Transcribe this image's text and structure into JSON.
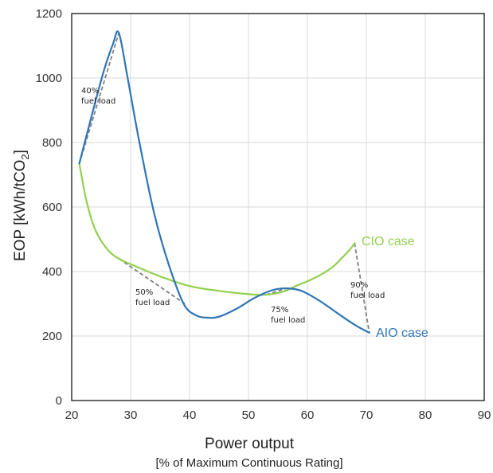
{
  "chart_data": {
    "type": "line",
    "xlabel": "Power output",
    "xlabel_sub": "[% of Maximum Continuous Rating]",
    "ylabel_main": "EOP [kWh/tCO",
    "ylabel_subscript": "2",
    "ylabel_close": "]",
    "xlim": [
      20,
      90
    ],
    "ylim": [
      0,
      1200
    ],
    "x_ticks": [
      "20",
      "30",
      "40",
      "50",
      "60",
      "70",
      "80",
      "90"
    ],
    "y_ticks": [
      "0",
      "200",
      "400",
      "600",
      "800",
      "1000",
      "1200"
    ],
    "grid": true,
    "series": [
      {
        "name": "CIO  case",
        "color": "#92d050",
        "points": [
          [
            21.3,
            735
          ],
          [
            22.5,
            620
          ],
          [
            24,
            530
          ],
          [
            26,
            470
          ],
          [
            28,
            440
          ],
          [
            31,
            415
          ],
          [
            35,
            385
          ],
          [
            40,
            355
          ],
          [
            45,
            340
          ],
          [
            50,
            330
          ],
          [
            53,
            328
          ],
          [
            56,
            338
          ],
          [
            58,
            355
          ],
          [
            61,
            378
          ],
          [
            64,
            410
          ],
          [
            66,
            445
          ],
          [
            67.3,
            470
          ],
          [
            68,
            488
          ]
        ]
      },
      {
        "name": "AIO  case",
        "color": "#2e75b6",
        "points": [
          [
            21.3,
            735
          ],
          [
            22.5,
            820
          ],
          [
            24,
            925
          ],
          [
            25.5,
            1025
          ],
          [
            27,
            1105
          ],
          [
            28,
            1140
          ],
          [
            29.5,
            1000
          ],
          [
            31.5,
            800
          ],
          [
            34,
            580
          ],
          [
            36.5,
            420
          ],
          [
            39,
            300
          ],
          [
            41,
            265
          ],
          [
            43,
            257
          ],
          [
            45,
            260
          ],
          [
            48,
            285
          ],
          [
            51,
            318
          ],
          [
            54,
            342
          ],
          [
            56.5,
            348
          ],
          [
            59,
            340
          ],
          [
            62,
            310
          ],
          [
            65,
            272
          ],
          [
            68,
            235
          ],
          [
            70.5,
            210
          ]
        ]
      }
    ],
    "dashed_lines": [
      {
        "label_line1": "40%",
        "label_line2": "fuel load",
        "from": [
          21.3,
          735
        ],
        "to": [
          28,
          1140
        ]
      },
      {
        "label_line1": "50%",
        "label_line2": "fuel load",
        "from": [
          28,
          440
        ],
        "to": [
          39.2,
          300
        ]
      },
      {
        "label_line1": "75%",
        "label_line2": "fuel load",
        "from": [
          53,
          328
        ],
        "to": [
          56.5,
          348
        ]
      },
      {
        "label_line1": "90%",
        "label_line2": "fuel load",
        "from": [
          68,
          488
        ],
        "to": [
          70.5,
          210
        ]
      }
    ]
  }
}
